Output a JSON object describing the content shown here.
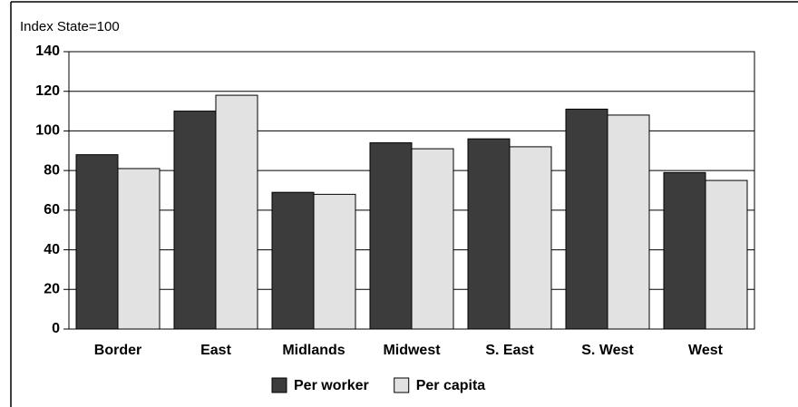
{
  "chart_data": {
    "type": "bar",
    "y_label": "Index State=100",
    "categories": [
      "Border",
      "East",
      "Midlands",
      "Midwest",
      "S. East",
      "S. West",
      "West"
    ],
    "series": [
      {
        "name": "Per worker",
        "color": "#3c3c3c",
        "values": [
          88,
          110,
          69,
          94,
          96,
          111,
          79
        ]
      },
      {
        "name": "Per capita",
        "color": "#e2e2e2",
        "values": [
          81,
          118,
          68,
          91,
          92,
          108,
          75
        ]
      }
    ],
    "ylim": [
      0,
      140
    ],
    "yticks": [
      0,
      20,
      40,
      60,
      80,
      100,
      120,
      140
    ],
    "grid": true
  }
}
